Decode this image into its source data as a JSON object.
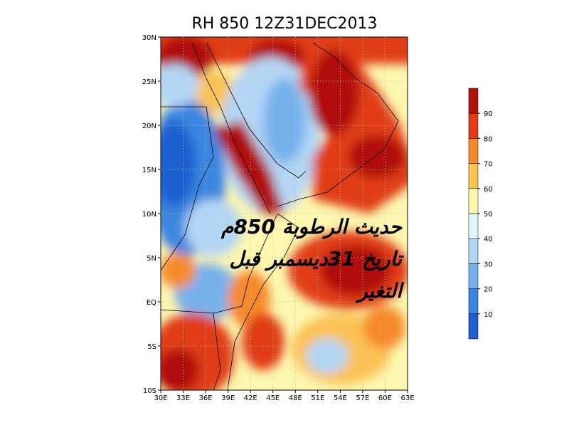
{
  "map": {
    "title": "RH 850 12Z31DEC2013",
    "lon_labels": [
      "30E",
      "33E",
      "36E",
      "39E",
      "42E",
      "45E",
      "48E",
      "51E",
      "54E",
      "57E",
      "60E",
      "63E"
    ],
    "lat_labels": [
      "10S",
      "5S",
      "EQ",
      "5N",
      "10N",
      "15N",
      "20N",
      "25N",
      "30N"
    ],
    "colorbar": {
      "levels": [
        10,
        20,
        30,
        40,
        50,
        60,
        70,
        80,
        90
      ],
      "colors": [
        "#1f5fcf",
        "#3a86e0",
        "#77b1ec",
        "#b4d6f5",
        "#e1f6fb",
        "#fdf7b0",
        "#fbc254",
        "#f68a2a",
        "#e03c17",
        "#b0110c"
      ]
    },
    "overlay_text": [
      "حديث الرطوبة 850م",
      "تاريخ 31ديسمبر قبل",
      "التغير"
    ]
  }
}
